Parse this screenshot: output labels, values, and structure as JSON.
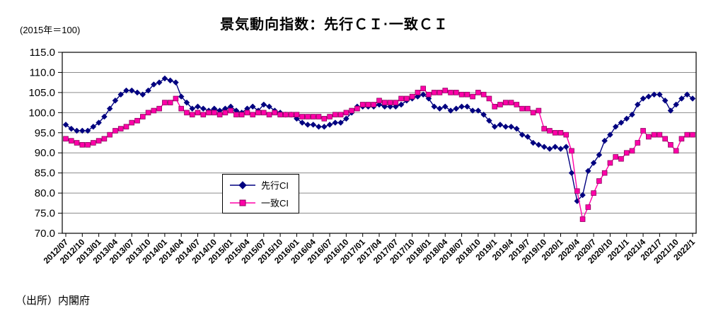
{
  "title": "景気動向指数：先行ＣＩ·一致ＣＩ",
  "unit_note": "(2015年＝100)",
  "source_note": "（出所）内閣府",
  "chart_data": {
    "type": "line",
    "title": "景気動向指数：先行ＣＩ·一致ＣＩ",
    "subtitle_note": "(2015年＝100)",
    "source": "（出所）内閣府",
    "frequency": "monthly",
    "x_start": "2012/07",
    "x_end": "2022/1",
    "x_tick_step": 3,
    "x_tick_labels": [
      "2012/07",
      "2012/10",
      "2013/01",
      "2013/04",
      "2013/07",
      "2013/10",
      "2014/01",
      "2014/04",
      "2014/07",
      "2014/10",
      "2015/01",
      "2015/04",
      "2015/07",
      "2015/10",
      "2016/01",
      "2016/04",
      "2016/07",
      "2016/10",
      "2017/01",
      "2017/04",
      "2017/07",
      "2017/10",
      "2018/01",
      "2018/04",
      "2018/07",
      "2018/10",
      "2019/1",
      "2019/4",
      "2019/7",
      "2019/10",
      "2020/1",
      "2020/4",
      "2020/7",
      "2020/10",
      "2021/1",
      "2021/4",
      "2021/7",
      "2021/10",
      "2022/1"
    ],
    "ylim": [
      70.0,
      115.0
    ],
    "y_tick_interval": 5.0,
    "y_tick_labels": [
      "115.0",
      "110.0",
      "105.0",
      "100.0",
      "95.0",
      "90.0",
      "85.0",
      "80.0",
      "75.0",
      "70.0"
    ],
    "grid": "horizontal",
    "legend_position": "inside-bottom-center",
    "series": [
      {
        "name": "先行CI",
        "marker": "diamond",
        "color": "#000080",
        "values": [
          97.0,
          96.0,
          95.5,
          95.5,
          95.5,
          96.5,
          97.5,
          99.0,
          101.0,
          103.0,
          104.5,
          105.5,
          105.5,
          105.0,
          104.5,
          105.5,
          107.0,
          107.5,
          108.5,
          108.0,
          107.5,
          104.0,
          102.5,
          101.0,
          101.5,
          101.0,
          100.5,
          101.0,
          100.5,
          101.0,
          101.5,
          100.5,
          100.0,
          101.0,
          101.5,
          100.5,
          102.0,
          101.5,
          100.5,
          100.0,
          99.5,
          99.5,
          98.5,
          97.5,
          97.0,
          97.0,
          96.5,
          96.5,
          97.0,
          97.5,
          97.5,
          98.5,
          100.0,
          101.5,
          101.5,
          101.5,
          101.5,
          102.0,
          101.5,
          101.5,
          101.5,
          102.0,
          103.0,
          103.5,
          104.0,
          104.5,
          103.5,
          101.5,
          101.0,
          101.5,
          100.5,
          101.0,
          101.5,
          101.5,
          100.5,
          100.5,
          99.5,
          98.0,
          96.5,
          97.0,
          96.5,
          96.5,
          96.0,
          94.5,
          94.0,
          92.5,
          92.0,
          91.5,
          91.0,
          91.5,
          91.0,
          91.5,
          85.0,
          78.0,
          79.5,
          85.5,
          87.5,
          89.5,
          93.0,
          94.5,
          96.5,
          97.5,
          98.5,
          99.5,
          102.0,
          103.5,
          104.0,
          104.5,
          104.5,
          103.0,
          100.5,
          102.0,
          103.5,
          104.5,
          103.5
        ]
      },
      {
        "name": "一致CI",
        "marker": "square",
        "color": "#ff00a8",
        "marker_stroke": "#8b005d",
        "values": [
          93.5,
          93.0,
          92.5,
          92.0,
          92.0,
          92.5,
          93.0,
          93.5,
          94.5,
          95.5,
          96.0,
          96.5,
          97.5,
          98.0,
          99.0,
          100.0,
          100.5,
          101.0,
          102.5,
          102.5,
          103.5,
          101.0,
          100.0,
          99.5,
          100.0,
          99.5,
          100.0,
          100.0,
          99.5,
          100.0,
          100.5,
          99.5,
          99.5,
          100.0,
          99.5,
          100.0,
          100.0,
          99.5,
          100.0,
          99.5,
          99.5,
          99.5,
          99.5,
          99.0,
          99.0,
          99.0,
          99.0,
          98.5,
          99.0,
          99.5,
          99.5,
          100.0,
          100.5,
          101.0,
          102.0,
          102.0,
          102.0,
          103.0,
          102.5,
          102.5,
          102.5,
          103.5,
          103.5,
          104.0,
          105.0,
          106.0,
          104.5,
          105.0,
          105.0,
          105.5,
          105.0,
          105.0,
          104.5,
          104.5,
          104.0,
          105.0,
          104.5,
          103.5,
          101.5,
          102.0,
          102.5,
          102.5,
          102.0,
          101.0,
          101.0,
          100.0,
          100.5,
          96.0,
          95.5,
          95.0,
          95.0,
          94.5,
          90.5,
          80.5,
          73.5,
          76.5,
          80.0,
          83.0,
          85.0,
          87.5,
          89.0,
          88.5,
          90.0,
          90.5,
          92.5,
          95.5,
          94.0,
          94.5,
          94.5,
          93.5,
          92.0,
          90.5,
          93.5,
          94.5,
          94.5
        ]
      }
    ]
  }
}
